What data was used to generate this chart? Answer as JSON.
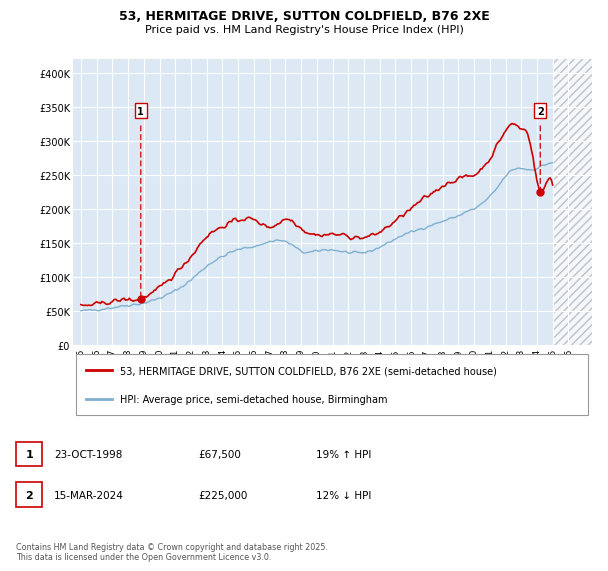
{
  "title_line1": "53, HERMITAGE DRIVE, SUTTON COLDFIELD, B76 2XE",
  "title_line2": "Price paid vs. HM Land Registry's House Price Index (HPI)",
  "ytick_labels": [
    "£0",
    "£50K",
    "£100K",
    "£150K",
    "£200K",
    "£250K",
    "£300K",
    "£350K",
    "£400K"
  ],
  "yticks": [
    0,
    50000,
    100000,
    150000,
    200000,
    250000,
    300000,
    350000,
    400000
  ],
  "plot_bg": "#dce9f5",
  "grid_color": "#ffffff",
  "red_color": "#cc0000",
  "blue_color": "#7fb0d0",
  "hatch_color": "#c8d8e8",
  "legend_line1": "53, HERMITAGE DRIVE, SUTTON COLDFIELD, B76 2XE (semi-detached house)",
  "legend_line2": "HPI: Average price, semi-detached house, Birmingham",
  "annotation1_date": "23-OCT-1998",
  "annotation1_price": "£67,500",
  "annotation1_hpi": "19% ↑ HPI",
  "annotation2_date": "15-MAR-2024",
  "annotation2_price": "£225,000",
  "annotation2_hpi": "12% ↓ HPI",
  "footer": "Contains HM Land Registry data © Crown copyright and database right 2025.\nThis data is licensed under the Open Government Licence v3.0.",
  "sale1_x": 1998.81,
  "sale1_y": 67500,
  "sale2_x": 2024.21,
  "sale2_y": 225000,
  "xmin": 1994.5,
  "xmax": 2027.5,
  "hatch_start": 2025.0,
  "ylim_max": 420000
}
